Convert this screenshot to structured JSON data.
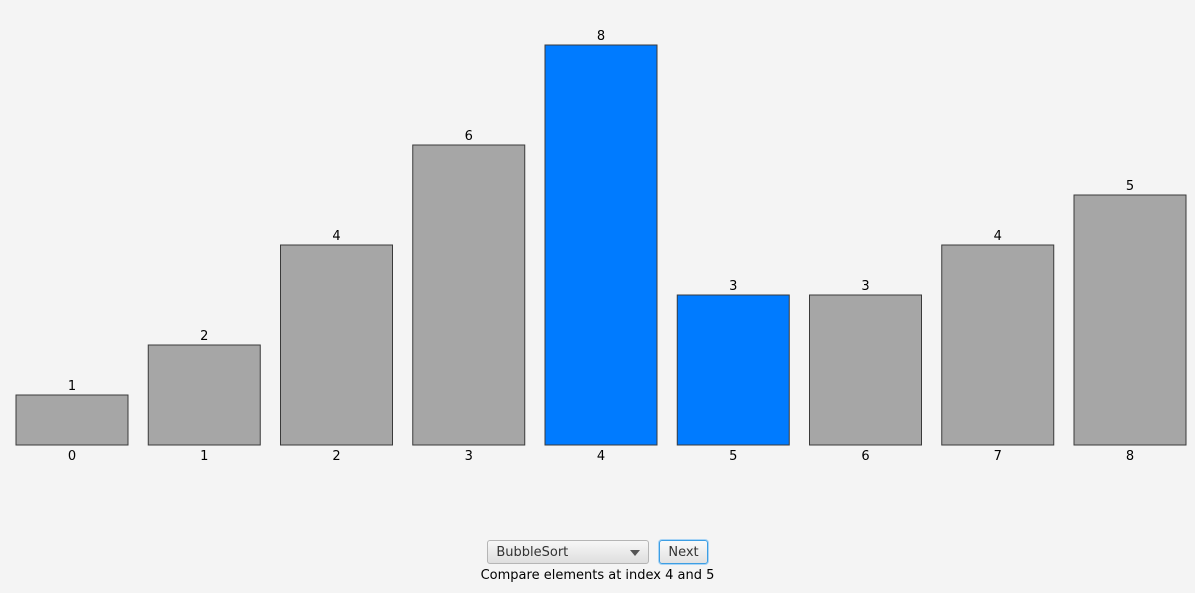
{
  "chart_data": {
    "type": "bar",
    "categories": [
      "0",
      "1",
      "2",
      "3",
      "4",
      "5",
      "6",
      "7",
      "8"
    ],
    "values": [
      1,
      2,
      4,
      6,
      8,
      3,
      3,
      4,
      5
    ],
    "highlighted": [
      4,
      5
    ],
    "ylim": [
      0,
      8
    ],
    "title": "",
    "xlabel": "",
    "ylabel": "",
    "grid": false
  },
  "colors": {
    "bar": "#a6a6a6",
    "highlight": "#007bff",
    "border": "#3a3a3a"
  },
  "controls": {
    "algorithm_selected": "BubbleSort",
    "next_label": "Next"
  },
  "status": {
    "message": "Compare elements at index 4 and 5"
  }
}
